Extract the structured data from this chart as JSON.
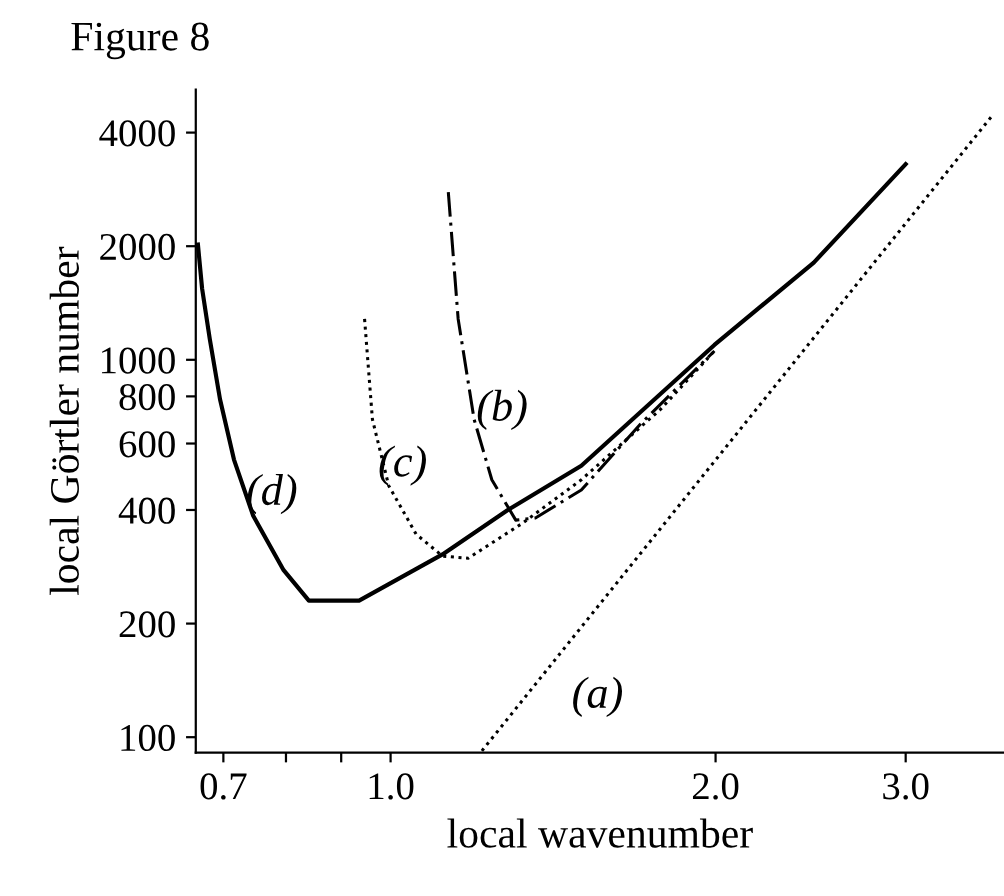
{
  "chart_data": {
    "type": "line",
    "title": "Figure 8",
    "xlabel": "local wavenumber",
    "ylabel": "local Görtler number",
    "log": "xy",
    "xlim": [
      0.66,
      3.7
    ],
    "ylim": [
      91,
      5200
    ],
    "xticks": [
      {
        "value": 0.7,
        "label": "0.7"
      },
      {
        "value": 0.8,
        "label": null
      },
      {
        "value": 0.9,
        "label": null
      },
      {
        "value": 1.0,
        "label": "1.0"
      },
      {
        "value": 2.0,
        "label": "2.0"
      },
      {
        "value": 3.0,
        "label": "3.0"
      }
    ],
    "yticks": [
      100,
      200,
      400,
      600,
      800,
      1000,
      2000,
      4000
    ],
    "grid": false,
    "legend": false,
    "series": [
      {
        "name": "(a)",
        "color": "#000000",
        "line_style": "dotted",
        "x": [
          1.215,
          3.6
        ],
        "values": [
          92,
          4400
        ]
      },
      {
        "name": "(b)",
        "color": "#000000",
        "line_style": "dashed",
        "x": [
          1.131,
          1.155,
          1.195,
          1.241,
          1.306,
          1.362,
          1.502,
          1.706,
          1.995
        ],
        "values": [
          2780,
          1283,
          695,
          481,
          376,
          381,
          452,
          678,
          1055
        ]
      },
      {
        "name": "(c)",
        "color": "#000000",
        "line_style": "dotted",
        "x": [
          0.946,
          0.962,
          0.996,
          1.056,
          1.117,
          1.18,
          1.323,
          1.502,
          1.779,
          1.995
        ],
        "values": [
          1283,
          695,
          464,
          345,
          302,
          298,
          368,
          481,
          740,
          1055
        ]
      },
      {
        "name": "(d)",
        "color": "#000000",
        "line_style": "solid",
        "x": [
          0.663,
          0.669,
          0.68,
          0.695,
          0.716,
          0.746,
          0.796,
          0.84,
          0.935,
          1.117,
          1.284,
          1.502,
          1.995,
          2.466,
          3.0
        ],
        "values": [
          2020,
          1543,
          1135,
          786,
          544,
          386,
          277,
          230,
          230,
          305,
          400,
          524,
          1095,
          1810,
          3300
        ]
      }
    ]
  }
}
